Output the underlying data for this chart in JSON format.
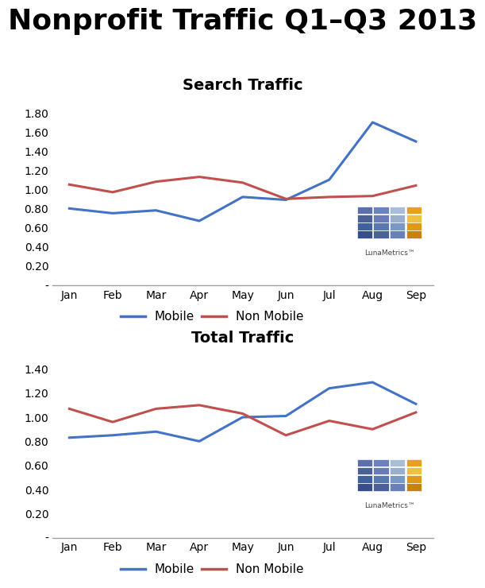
{
  "title": "Nonprofit Traffic Q1–Q3 2013",
  "months": [
    "Jan",
    "Feb",
    "Mar",
    "Apr",
    "May",
    "Jun",
    "Jul",
    "Aug",
    "Sep"
  ],
  "search_mobile": [
    0.8,
    0.75,
    0.78,
    0.67,
    0.92,
    0.89,
    1.1,
    1.7,
    1.5
  ],
  "search_nonmobile": [
    1.05,
    0.97,
    1.08,
    1.13,
    1.07,
    0.9,
    0.92,
    0.93,
    1.04
  ],
  "total_mobile": [
    0.83,
    0.85,
    0.88,
    0.8,
    1.0,
    1.01,
    1.24,
    1.29,
    1.11
  ],
  "total_nonmobile": [
    1.07,
    0.96,
    1.07,
    1.1,
    1.03,
    0.85,
    0.97,
    0.9,
    1.04
  ],
  "search_title": "Search Traffic",
  "total_title": "Total Traffic",
  "mobile_color": "#4472C4",
  "nonmobile_color": "#C0504D",
  "search_ylim": [
    0,
    1.95
  ],
  "search_yticks": [
    0.0,
    0.2,
    0.4,
    0.6,
    0.8,
    1.0,
    1.2,
    1.4,
    1.6,
    1.8
  ],
  "total_ylim": [
    0,
    1.55
  ],
  "total_yticks": [
    0.0,
    0.2,
    0.4,
    0.6,
    0.8,
    1.0,
    1.2,
    1.4
  ],
  "bg_color": "#FFFFFF",
  "legend_mobile": "Mobile",
  "legend_nonmobile": "Non Mobile",
  "title_fontsize": 26,
  "subtitle_fontsize": 14,
  "tick_fontsize": 10,
  "legend_fontsize": 11,
  "line_width": 2.2
}
